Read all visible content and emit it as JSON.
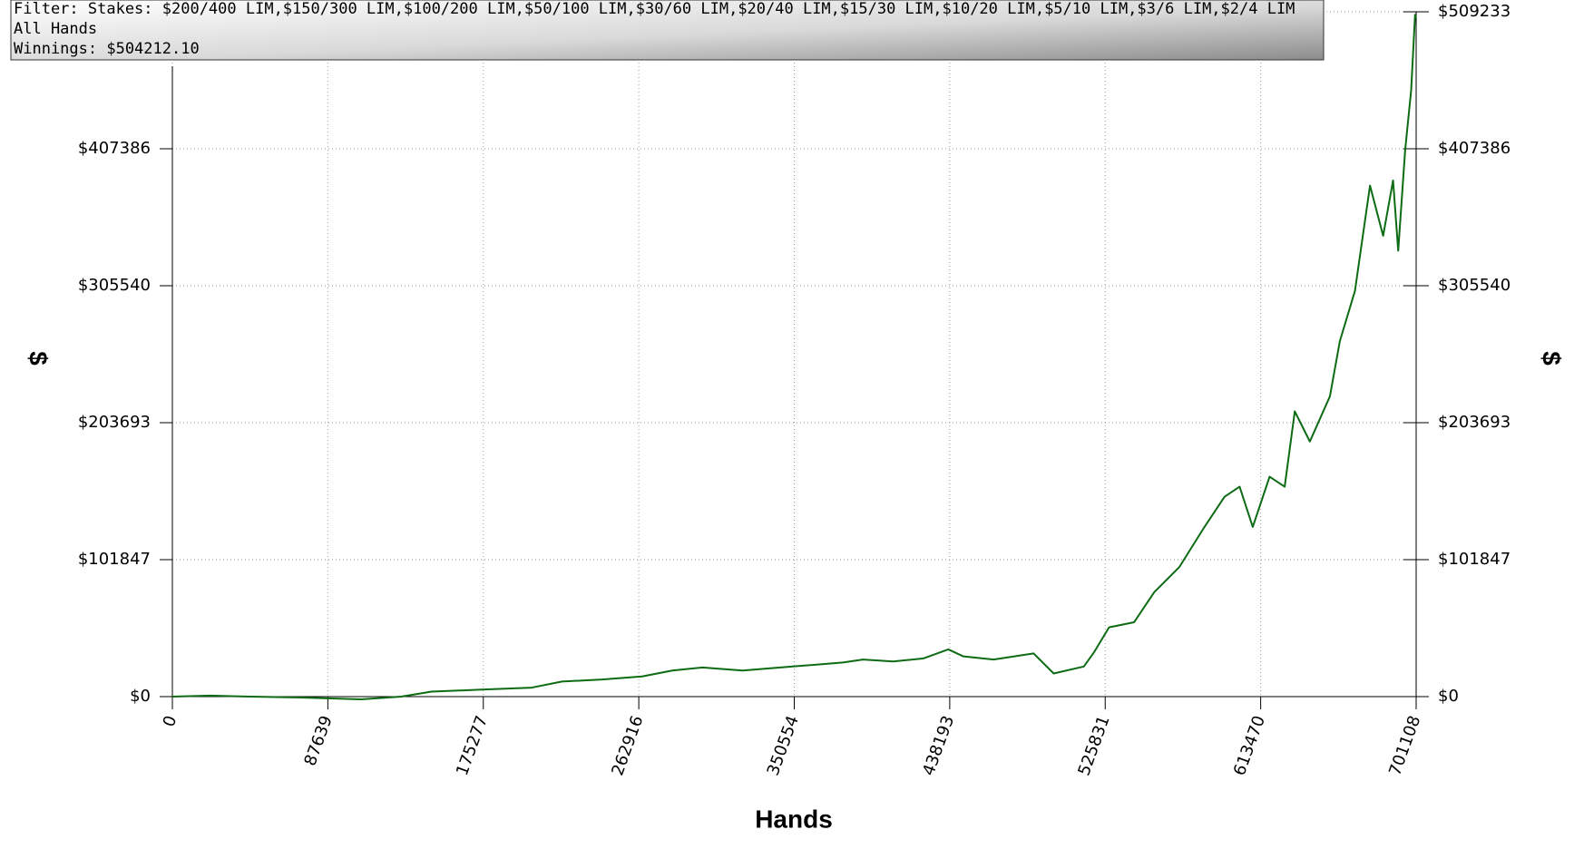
{
  "info": {
    "filter": "Filter: Stakes: $200/400 LIM,$150/300 LIM,$100/200 LIM,$50/100 LIM,$30/60 LIM,$20/40 LIM,$15/30 LIM,$10/20 LIM,$5/10 LIM,$3/6 LIM,$2/4 LIM",
    "hands": "All Hands",
    "winnings": "Winnings: $504212.10"
  },
  "chart_data": {
    "type": "line",
    "x_label": "Hands",
    "y_label": "$",
    "xlim": [
      0,
      701108
    ],
    "xticks": [
      0,
      87639,
      175277,
      262916,
      350554,
      438193,
      525831,
      613470,
      701108
    ],
    "ylim": [
      0,
      509233
    ],
    "yticks": [
      {
        "value": 0,
        "label": "$0"
      },
      {
        "value": 101847,
        "label": "$101847"
      },
      {
        "value": 203693,
        "label": "$203693"
      },
      {
        "value": 305540,
        "label": "$305540"
      },
      {
        "value": 407386,
        "label": "$407386"
      },
      {
        "value": 509233,
        "label": "$509233"
      }
    ],
    "grid": true,
    "series": [
      {
        "name": "Winnings",
        "color": "#0d6b14",
        "x": [
          0,
          21500,
          44100,
          72400,
          106400,
          129000,
          146000,
          174300,
          202600,
          219600,
          242200,
          264800,
          281800,
          298800,
          321400,
          349700,
          378000,
          389300,
          406300,
          423300,
          437400,
          445900,
          462900,
          485500,
          496800,
          513800,
          519500,
          528000,
          542100,
          553500,
          567600,
          581800,
          593100,
          601600,
          609000,
          618500,
          627000,
          632700,
          641200,
          652500,
          658100,
          666600,
          675100,
          682500,
          688100,
          691000,
          694900,
          698300,
          700500,
          701108
        ],
        "values": [
          0,
          750,
          0,
          -700,
          -2000,
          0,
          3700,
          5200,
          6700,
          11200,
          12700,
          15000,
          19400,
          21700,
          19400,
          22400,
          25400,
          27600,
          26100,
          28400,
          35100,
          29900,
          27600,
          32100,
          17200,
          22400,
          32900,
          51500,
          55300,
          77700,
          96300,
          126200,
          148600,
          156100,
          126200,
          163500,
          156100,
          212100,
          189700,
          223300,
          264300,
          301600,
          380000,
          342700,
          383800,
          331600,
          406200,
          451000,
          507000,
          504212
        ]
      }
    ]
  }
}
